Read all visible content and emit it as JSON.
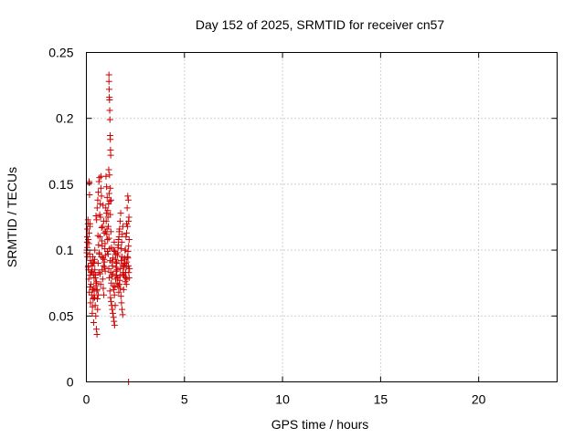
{
  "chart_data": {
    "type": "scatter",
    "title": "Day 152 of 2025, SRMTID for receiver cn57",
    "xlabel": "GPS time / hours",
    "ylabel": "SRMTID / TECUs",
    "xlim": [
      0,
      24
    ],
    "ylim": [
      0,
      0.25
    ],
    "xticks": [
      0,
      5,
      10,
      15,
      20
    ],
    "yticks": [
      0,
      0.05,
      0.1,
      0.15,
      0.2,
      0.25
    ],
    "ytick_labels": [
      "0",
      "0.05",
      "0.1",
      "0.15",
      "0.2",
      "0.25"
    ],
    "grid": true,
    "marker": "plus",
    "color": "#cc0000",
    "series": [
      {
        "x": [
          0.02,
          0.04,
          0.06,
          0.08,
          0.1,
          0.12,
          0.14,
          0.16,
          0.18,
          0.2,
          0.02,
          0.05,
          0.08,
          0.11,
          0.14,
          0.17,
          0.2,
          0.23,
          0.04,
          0.09,
          0.12,
          0.15,
          0.18,
          0.21,
          0.24,
          0.27,
          0.3,
          0.33,
          0.36,
          0.39,
          0.25,
          0.28,
          0.31,
          0.34,
          0.37,
          0.4,
          0.43,
          0.46,
          0.49,
          0.52,
          0.3,
          0.33,
          0.36,
          0.39,
          0.42,
          0.45,
          0.48,
          0.51,
          0.54,
          0.57,
          0.4,
          0.43,
          0.46,
          0.49,
          0.52,
          0.55,
          0.58,
          0.61,
          0.64,
          0.67,
          0.5,
          0.53,
          0.56,
          0.59,
          0.62,
          0.65,
          0.68,
          0.71,
          0.74,
          0.77,
          0.6,
          0.63,
          0.66,
          0.69,
          0.72,
          0.75,
          0.78,
          0.81,
          0.84,
          0.87,
          0.7,
          0.73,
          0.76,
          0.79,
          0.82,
          0.85,
          0.88,
          0.91,
          0.94,
          0.97,
          0.8,
          0.83,
          0.86,
          0.89,
          0.92,
          0.95,
          0.98,
          1.01,
          1.04,
          1.07,
          0.9,
          0.93,
          0.96,
          0.99,
          1.02,
          1.05,
          1.08,
          1.11,
          1.14,
          1.17,
          1.0,
          1.03,
          1.06,
          1.09,
          1.12,
          1.15,
          1.18,
          1.21,
          1.24,
          1.27,
          1.1,
          1.13,
          1.16,
          1.19,
          1.22,
          1.25,
          1.28,
          1.31,
          1.34,
          1.37,
          1.2,
          1.23,
          1.26,
          1.29,
          1.32,
          1.35,
          1.38,
          1.41,
          1.44,
          1.47,
          1.3,
          1.33,
          1.36,
          1.39,
          1.42,
          1.45,
          1.48,
          1.51,
          1.54,
          1.57,
          1.4,
          1.43,
          1.46,
          1.49,
          1.52,
          1.55,
          1.58,
          1.61,
          1.64,
          1.67,
          1.5,
          1.53,
          1.56,
          1.59,
          1.62,
          1.65,
          1.68,
          1.71,
          1.74,
          1.77,
          1.6,
          1.63,
          1.66,
          1.69,
          1.72,
          1.75,
          1.78,
          1.81,
          1.84,
          1.87,
          1.7,
          1.73,
          1.76,
          1.79,
          1.82,
          1.85,
          1.88,
          1.91,
          1.94,
          1.97,
          1.8,
          1.83,
          1.86,
          1.89,
          1.92,
          1.95,
          1.98,
          2.01,
          2.04,
          2.07,
          1.9,
          1.93,
          1.96,
          1.99,
          2.02,
          2.05,
          2.08,
          2.11,
          2.14,
          2.17,
          2.0,
          2.03,
          2.06,
          2.09,
          2.12,
          2.15,
          2.18,
          2.05,
          2.1,
          2.15,
          1.15,
          1.15,
          1.16,
          1.17,
          1.18,
          1.19,
          1.2,
          1.21,
          1.22,
          1.23,
          1.24,
          1.14,
          1.18,
          1.22,
          1.26,
          2.12,
          2.14,
          2.16,
          2.18,
          2.2,
          0.15,
          0.18,
          0.05,
          0.55,
          0.6,
          0.35,
          0.42,
          0.1,
          2.15
        ],
        "y": [
          0.1,
          0.11,
          0.095,
          0.123,
          0.088,
          0.105,
          0.152,
          0.142,
          0.118,
          0.092,
          0.098,
          0.102,
          0.12,
          0.085,
          0.113,
          0.097,
          0.081,
          0.074,
          0.106,
          0.087,
          0.078,
          0.068,
          0.072,
          0.06,
          0.083,
          0.066,
          0.052,
          0.07,
          0.064,
          0.079,
          0.09,
          0.084,
          0.057,
          0.063,
          0.045,
          0.069,
          0.1,
          0.081,
          0.073,
          0.076,
          0.088,
          0.095,
          0.082,
          0.071,
          0.064,
          0.058,
          0.05,
          0.04,
          0.036,
          0.055,
          0.091,
          0.085,
          0.079,
          0.126,
          0.123,
          0.132,
          0.138,
          0.144,
          0.152,
          0.155,
          0.075,
          0.069,
          0.063,
          0.111,
          0.104,
          0.098,
          0.127,
          0.135,
          0.147,
          0.141,
          0.09,
          0.083,
          0.097,
          0.11,
          0.125,
          0.156,
          0.117,
          0.103,
          0.094,
          0.088,
          0.082,
          0.074,
          0.095,
          0.107,
          0.118,
          0.134,
          0.122,
          0.113,
          0.101,
          0.096,
          0.085,
          0.078,
          0.071,
          0.066,
          0.091,
          0.105,
          0.114,
          0.122,
          0.112,
          0.099,
          0.093,
          0.087,
          0.084,
          0.132,
          0.128,
          0.116,
          0.108,
          0.097,
          0.086,
          0.079,
          0.156,
          0.148,
          0.14,
          0.13,
          0.118,
          0.109,
          0.101,
          0.092,
          0.083,
          0.075,
          0.125,
          0.135,
          0.143,
          0.137,
          0.127,
          0.114,
          0.102,
          0.091,
          0.082,
          0.073,
          0.069,
          0.064,
          0.061,
          0.058,
          0.055,
          0.052,
          0.049,
          0.046,
          0.043,
          0.058,
          0.08,
          0.088,
          0.094,
          0.1,
          0.106,
          0.099,
          0.093,
          0.087,
          0.081,
          0.075,
          0.07,
          0.066,
          0.072,
          0.078,
          0.084,
          0.09,
          0.096,
          0.102,
          0.108,
          0.114,
          0.097,
          0.091,
          0.085,
          0.079,
          0.073,
          0.068,
          0.074,
          0.08,
          0.086,
          0.092,
          0.098,
          0.104,
          0.11,
          0.116,
          0.122,
          0.128,
          0.101,
          0.095,
          0.089,
          0.083,
          0.077,
          0.071,
          0.065,
          0.06,
          0.055,
          0.051,
          0.082,
          0.088,
          0.094,
          0.1,
          0.106,
          0.112,
          0.118,
          0.081,
          0.087,
          0.093,
          0.076,
          0.079,
          0.074,
          0.078,
          0.07,
          0.08,
          0.09,
          0.1,
          0.11,
          0.12,
          0.132,
          0.141,
          0.138,
          0.125,
          0.083,
          0.087,
          0.091,
          0.095,
          0.099,
          0.103,
          0.108,
          0.113,
          0.118,
          0.122,
          0.233,
          0.228,
          0.222,
          0.216,
          0.214,
          0.206,
          0.199,
          0.187,
          0.184,
          0.176,
          0.172,
          0.161,
          0.157,
          0.147,
          0.138,
          0.094,
          0.088,
          0.083,
          0.079,
          0.086,
          0.151,
          0.12,
          0.116,
          0.07,
          0.066,
          0.09,
          0.093,
          0.108,
          0.0
        ]
      }
    ]
  }
}
